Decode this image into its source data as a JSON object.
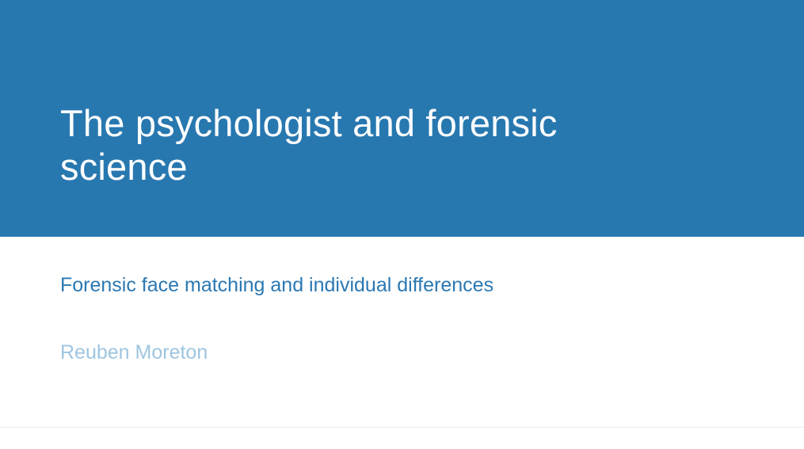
{
  "slide": {
    "title": "The psychologist and forensic science",
    "subtitle": "Forensic face matching and individual differences",
    "author": "Reuben Moreton"
  },
  "colors": {
    "title_band": "#2878b0",
    "title_text": "#ffffff",
    "subtitle_text": "#2b78b2",
    "author_text": "#9ec5e0"
  }
}
